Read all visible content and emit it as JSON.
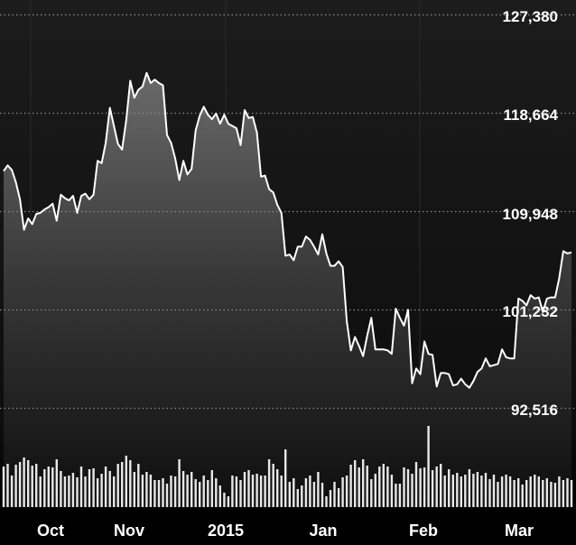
{
  "chart_data": {
    "type": "line",
    "title": "",
    "xlabel": "",
    "ylabel": "",
    "grid": true,
    "y_ticks": [
      "127,380",
      "118,664",
      "109,948",
      "101,232",
      "92,516"
    ],
    "y_tick_values": [
      127380,
      118664,
      109948,
      101232,
      92516
    ],
    "x_ticks": [
      "Oct",
      "Nov",
      "2015",
      "Jan",
      "Feb",
      "Mar"
    ],
    "colors": {
      "background": "#000000",
      "plot_top": "#1c1c1c",
      "line": "#ffffff",
      "area_top": "#626262",
      "grid": "#8a8a8a"
    },
    "series": [
      {
        "values": [
          113500,
          114000,
          113600,
          112500,
          111000,
          108300,
          109300,
          108800,
          109700,
          109800,
          110100,
          110300,
          110600,
          109100,
          111400,
          111100,
          110900,
          111300,
          109800,
          111300,
          111500,
          111000,
          111400,
          114400,
          114200,
          116000,
          119100,
          117500,
          115900,
          115400,
          118000,
          121500,
          120000,
          120700,
          121000,
          122200,
          121300,
          121600,
          121300,
          121100,
          116700,
          116000,
          114600,
          112700,
          114400,
          113200,
          113700,
          117100,
          118400,
          119200,
          118500,
          118100,
          118600,
          117700,
          118500,
          117700,
          117500,
          117300,
          115800,
          118900,
          118200,
          118300,
          116900,
          113000,
          113100,
          111900,
          111600,
          110500,
          109800,
          106000,
          106100,
          105600,
          106800,
          106800,
          107700,
          107400,
          106800,
          106100,
          107900,
          106200,
          105100,
          105100,
          105500,
          105000,
          100200,
          97600,
          98800,
          98000,
          97100,
          98900,
          100500,
          97700,
          97700,
          97700,
          97600,
          97300,
          101300,
          100500,
          99800,
          101200,
          94700,
          96000,
          95500,
          98400,
          97300,
          97200,
          94400,
          95600,
          95600,
          95500,
          94500,
          94600,
          95100,
          94600,
          94300,
          94900,
          95700,
          96000,
          96900,
          96200,
          96300,
          96400,
          97700,
          97000,
          96900,
          96900,
          102200,
          102000,
          101600,
          102500,
          102200,
          102300,
          101000,
          102200,
          102300,
          102300,
          104000,
          106400,
          106200,
          106300
        ]
      }
    ],
    "volume": [
      0.45,
      0.48,
      0.35,
      0.47,
      0.5,
      0.55,
      0.52,
      0.46,
      0.48,
      0.34,
      0.42,
      0.45,
      0.44,
      0.53,
      0.4,
      0.34,
      0.35,
      0.38,
      0.33,
      0.45,
      0.34,
      0.42,
      0.43,
      0.32,
      0.37,
      0.45,
      0.4,
      0.34,
      0.48,
      0.5,
      0.57,
      0.52,
      0.39,
      0.48,
      0.36,
      0.39,
      0.36,
      0.3,
      0.3,
      0.32,
      0.26,
      0.35,
      0.34,
      0.53,
      0.4,
      0.36,
      0.39,
      0.31,
      0.28,
      0.35,
      0.3,
      0.41,
      0.32,
      0.24,
      0.16,
      0.12,
      0.35,
      0.34,
      0.3,
      0.39,
      0.41,
      0.36,
      0.37,
      0.35,
      0.35,
      0.53,
      0.48,
      0.42,
      0.35,
      0.64,
      0.28,
      0.32,
      0.2,
      0.24,
      0.32,
      0.35,
      0.28,
      0.39,
      0.27,
      0.12,
      0.19,
      0.28,
      0.21,
      0.33,
      0.35,
      0.47,
      0.52,
      0.44,
      0.53,
      0.46,
      0.31,
      0.37,
      0.45,
      0.48,
      0.45,
      0.36,
      0.26,
      0.26,
      0.44,
      0.42,
      0.37,
      0.5,
      0.43,
      0.44,
      0.9,
      0.41,
      0.45,
      0.48,
      0.35,
      0.42,
      0.36,
      0.38,
      0.34,
      0.36,
      0.42,
      0.37,
      0.39,
      0.35,
      0.38,
      0.31,
      0.36,
      0.28,
      0.34,
      0.36,
      0.34,
      0.3,
      0.32,
      0.25,
      0.3,
      0.34,
      0.36,
      0.34,
      0.3,
      0.32,
      0.28,
      0.27,
      0.34,
      0.3,
      0.32,
      0.3
    ]
  }
}
